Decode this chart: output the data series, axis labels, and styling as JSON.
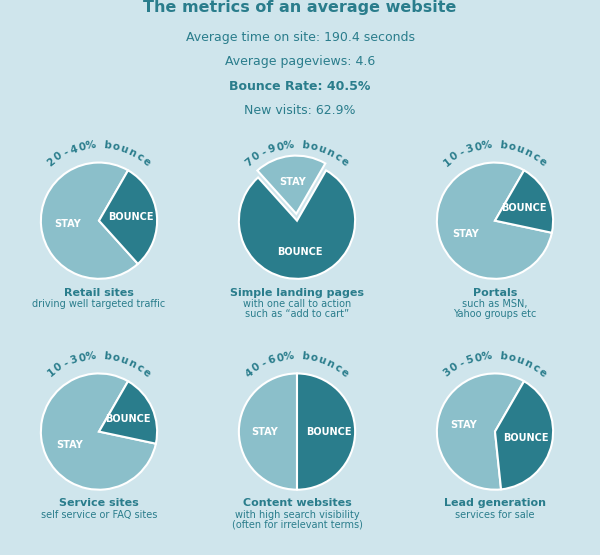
{
  "title": "The metrics of an average website",
  "subtitle_lines": [
    "Average time on site: 190.4 seconds",
    "Average pageviews: 4.6",
    "Bounce Rate: 40.5%",
    "New visits: 62.9%"
  ],
  "bold_line_index": 2,
  "bg_color": "#cfe5ec",
  "text_color": "#2a7d8c",
  "pie_light": "#8bbfca",
  "pie_dark": "#2a7d8c",
  "charts": [
    {
      "bounce_pct": 30,
      "explode_stay": false,
      "label": "20-40% bounce",
      "title": "Retail sites",
      "subtitle": "driving well targeted traffic",
      "subtitle2": "",
      "start_angle": 60
    },
    {
      "bounce_pct": 80,
      "explode_stay": true,
      "label": "70-90% bounce",
      "title": "Simple landing pages",
      "subtitle": "with one call to action",
      "subtitle2": "such as “add to cart”",
      "start_angle": 60
    },
    {
      "bounce_pct": 20,
      "explode_stay": false,
      "label": "10-30% bounce",
      "title": "Portals",
      "subtitle": "such as MSN,",
      "subtitle2": "Yahoo groups etc",
      "start_angle": 60
    },
    {
      "bounce_pct": 20,
      "explode_stay": false,
      "label": "10-30% bounce",
      "title": "Service sites",
      "subtitle": "self service or FAQ sites",
      "subtitle2": "",
      "start_angle": 60
    },
    {
      "bounce_pct": 50,
      "explode_stay": false,
      "label": "40-60% bounce",
      "title": "Content websites",
      "subtitle": "with high search visibility",
      "subtitle2": "(often for irrelevant terms)",
      "start_angle": 90
    },
    {
      "bounce_pct": 40,
      "explode_stay": false,
      "label": "30-50% bounce",
      "title": "Lead generation",
      "subtitle": "services for sale",
      "subtitle2": "",
      "start_angle": 60
    }
  ]
}
